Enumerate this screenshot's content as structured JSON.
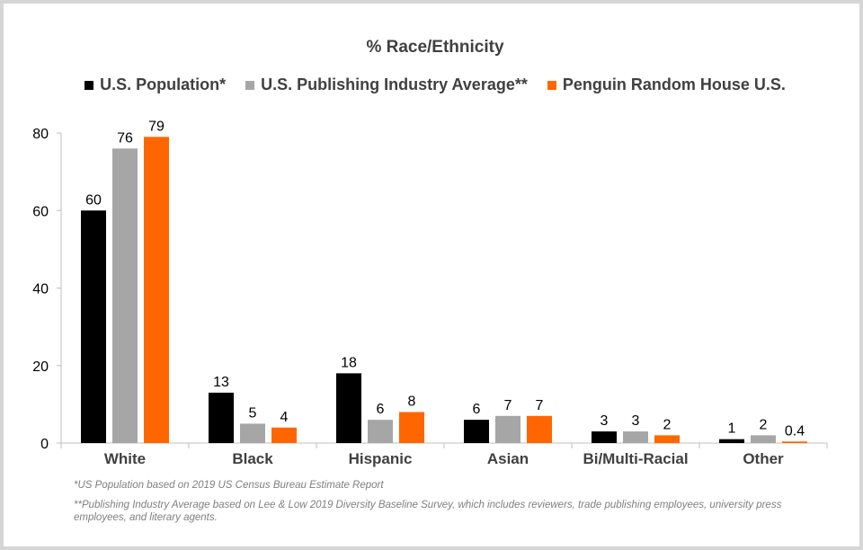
{
  "chart_data": {
    "type": "bar",
    "title": "% Race/Ethnicity",
    "categories": [
      "White",
      "Black",
      "Hispanic",
      "Asian",
      "Bi/Multi-Racial",
      "Other"
    ],
    "series": [
      {
        "name": "U.S. Population*",
        "color": "#000000",
        "values": [
          60,
          13,
          18,
          6,
          3,
          1
        ],
        "labels": [
          "60",
          "13",
          "18",
          "6",
          "3",
          "1"
        ]
      },
      {
        "name": "U.S. Publishing Industry Average**",
        "color": "#a6a6a6",
        "values": [
          76,
          5,
          6,
          7,
          3,
          2
        ],
        "labels": [
          "76",
          "5",
          "6",
          "7",
          "3",
          "2"
        ]
      },
      {
        "name": "Penguin Random House U.S.",
        "color": "#ff6600",
        "values": [
          79,
          4,
          8,
          7,
          2,
          0.4
        ],
        "labels": [
          "79",
          "4",
          "8",
          "7",
          "2",
          "0.4"
        ]
      }
    ],
    "ylim": [
      0,
      80
    ],
    "yticks": [
      "0",
      "20",
      "40",
      "60",
      "80"
    ],
    "xlabel": "",
    "ylabel": "",
    "grid": false,
    "legend_position": "top"
  },
  "notes": [
    "*US Population based on 2019 US Census Bureau Estimate Report",
    "**Publishing Industry Average based on Lee & Low 2019 Diversity Baseline Survey, which includes reviewers, trade publishing employees, university press employees, and literary agents."
  ]
}
